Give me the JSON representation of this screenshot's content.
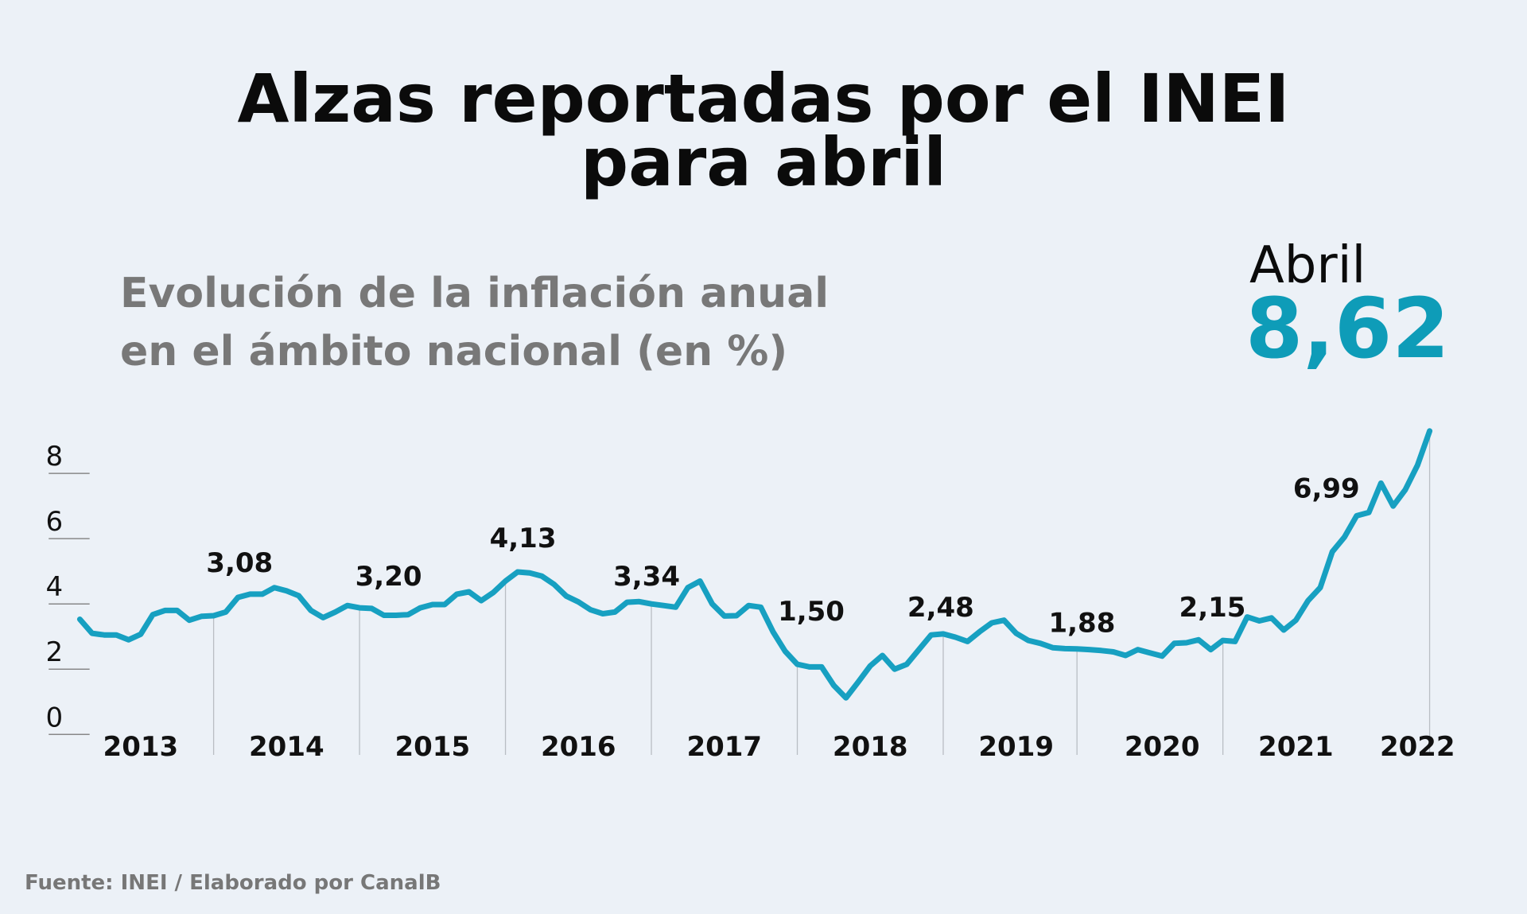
{
  "chart_data": {
    "type": "line",
    "title": [
      "Alzas reportadas por el INEI",
      "para abril"
    ],
    "subtitle": [
      "Evolución de la inflación anual",
      "en el ámbito nacional (en %)"
    ],
    "highlight": {
      "label": "Abril",
      "value": 8.62,
      "value_label": "8,62"
    },
    "source": "Fuente: INEI / Elaborado por CanalB",
    "color": "#17a0c1",
    "ylim": [
      0,
      8
    ],
    "yticks": [
      0,
      2,
      4,
      6,
      8
    ],
    "categories": [
      null,
      null,
      null,
      null,
      null,
      "2013",
      null,
      null,
      null,
      null,
      null,
      null,
      null,
      null,
      null,
      null,
      null,
      "2014",
      null,
      null,
      null,
      null,
      null,
      null,
      null,
      null,
      null,
      null,
      null,
      "2015",
      null,
      null,
      null,
      null,
      null,
      null,
      null,
      null,
      null,
      null,
      null,
      "2016",
      null,
      null,
      null,
      null,
      null,
      null,
      null,
      null,
      null,
      null,
      null,
      "2017",
      null,
      null,
      null,
      null,
      null,
      null,
      null,
      null,
      null,
      null,
      null,
      "2018",
      null,
      null,
      null,
      null,
      null,
      null,
      null,
      null,
      null,
      null,
      null,
      "2019",
      null,
      null,
      null,
      null,
      null,
      null,
      null,
      null,
      null,
      null,
      null,
      "2020",
      null,
      null,
      null,
      null,
      null,
      null,
      null,
      null,
      null,
      null,
      "2021",
      null,
      null,
      null,
      null,
      null,
      null,
      null,
      null,
      null,
      "2022",
      null
    ],
    "values": [
      3.53,
      3.1,
      3.05,
      3.05,
      2.9,
      3.07,
      3.67,
      3.8,
      3.8,
      3.5,
      3.62,
      3.64,
      3.75,
      4.2,
      4.3,
      4.3,
      4.5,
      4.4,
      4.25,
      3.8,
      3.58,
      3.75,
      3.95,
      3.88,
      3.86,
      3.65,
      3.65,
      3.67,
      3.88,
      3.98,
      3.98,
      4.3,
      4.37,
      4.1,
      4.35,
      4.7,
      4.98,
      4.95,
      4.85,
      4.6,
      4.24,
      4.06,
      3.82,
      3.7,
      3.75,
      4.05,
      4.07,
      4.0,
      3.95,
      3.9,
      4.5,
      4.7,
      4.0,
      3.63,
      3.64,
      3.95,
      3.9,
      3.15,
      2.55,
      2.15,
      2.07,
      2.07,
      1.5,
      1.12,
      1.6,
      2.1,
      2.42,
      2.0,
      2.15,
      2.6,
      3.05,
      3.08,
      2.98,
      2.85,
      3.15,
      3.42,
      3.5,
      3.1,
      2.88,
      2.79,
      2.66,
      2.63,
      2.62,
      2.6,
      2.57,
      2.53,
      2.42,
      2.6,
      2.5,
      2.4,
      2.79,
      2.81,
      2.9,
      2.6,
      2.88,
      2.85,
      3.6,
      3.48,
      3.57,
      3.2,
      3.5,
      4.1,
      4.5,
      5.6,
      6.05,
      6.7,
      6.8,
      7.7,
      7.0,
      7.5,
      8.25,
      9.3
    ],
    "annotations": [
      {
        "value": 3.08,
        "label": "3,08"
      },
      {
        "value": 3.2,
        "label": "3,20"
      },
      {
        "value": 4.13,
        "label": "4,13"
      },
      {
        "value": 3.34,
        "label": "3,34"
      },
      {
        "value": 1.5,
        "label": "1,50"
      },
      {
        "value": 2.48,
        "label": "2,48"
      },
      {
        "value": 1.88,
        "label": "1,88"
      },
      {
        "value": 2.15,
        "label": "2,15"
      },
      {
        "value": 6.99,
        "label": "6,99"
      }
    ]
  }
}
